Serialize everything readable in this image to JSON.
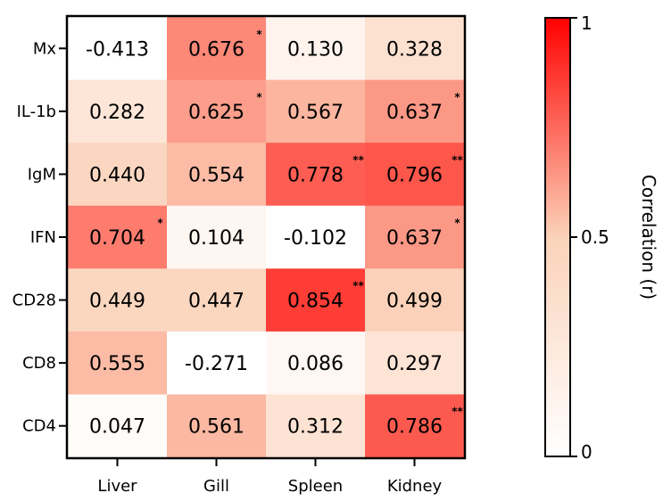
{
  "chart_data": {
    "type": "heatmap",
    "title": "",
    "xlabel": "",
    "ylabel": "",
    "columns": [
      "Liver",
      "Gill",
      "Spleen",
      "Kidney"
    ],
    "rows": [
      "Mx",
      "IL-1b",
      "IgM",
      "IFN",
      "CD28",
      "CD8",
      "CD4"
    ],
    "values": [
      [
        "-0.413",
        "0.676",
        "0.130",
        "0.328"
      ],
      [
        "0.282",
        "0.625",
        "0.567",
        "0.637"
      ],
      [
        "0.440",
        "0.554",
        "0.778",
        "0.796"
      ],
      [
        "0.704",
        "0.104",
        "-0.102",
        "0.637"
      ],
      [
        "0.449",
        "0.447",
        "0.854",
        "0.499"
      ],
      [
        "0.555",
        "-0.271",
        "0.086",
        "0.297"
      ],
      [
        "0.047",
        "0.561",
        "0.312",
        "0.786"
      ]
    ],
    "significance": [
      [
        "",
        "*",
        "",
        ""
      ],
      [
        "",
        "*",
        "",
        "*"
      ],
      [
        "",
        "",
        "**",
        "**"
      ],
      [
        "*",
        "",
        "",
        "*"
      ],
      [
        "",
        "",
        "**",
        ""
      ],
      [
        "",
        "",
        "",
        ""
      ],
      [
        "",
        "",
        "",
        "**"
      ]
    ],
    "colorbar": {
      "title": "Correlation (r)",
      "range": [
        0,
        1
      ],
      "ticks": [
        0,
        0.5,
        1
      ],
      "tick_labels": [
        "0",
        "0.5",
        "1"
      ],
      "low_color": "#ffffff",
      "mid_color": "#fbd2b9",
      "high_color": "#ff0000"
    }
  }
}
